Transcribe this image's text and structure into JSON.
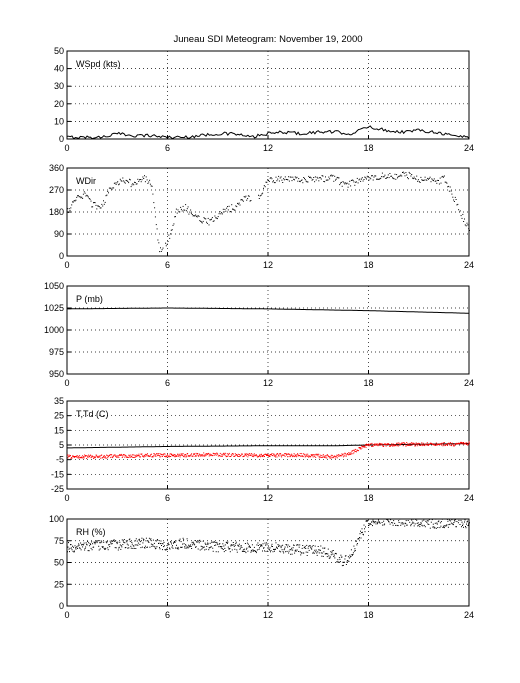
{
  "figure": {
    "title": "Juneau SDI Meteogram:  November 19, 2000"
  },
  "colors": {
    "primary": "#000000",
    "dewpoint": "#ff0000"
  },
  "chart_data": [
    {
      "type": "line",
      "label": "WSpd (kts)",
      "xlim": [
        0,
        24
      ],
      "xticks": [
        "0",
        "6",
        "12",
        "18",
        "24"
      ],
      "ylim": [
        0,
        50
      ],
      "yticks": [
        "0",
        "10",
        "20",
        "30",
        "40",
        "50"
      ],
      "grid": true,
      "series": [
        {
          "style": "line",
          "color": "#000000",
          "x": [
            0,
            1,
            2,
            3,
            4,
            5,
            6,
            7,
            8,
            9,
            10,
            11,
            12,
            13,
            14,
            15,
            16,
            17,
            18,
            19,
            20,
            21,
            22,
            23,
            24
          ],
          "y": [
            1,
            1,
            1,
            3,
            2,
            2,
            1,
            1,
            2,
            3,
            3,
            1,
            3,
            4,
            3,
            4,
            4,
            3,
            7,
            5,
            4,
            5,
            4,
            2,
            1
          ]
        }
      ]
    },
    {
      "type": "scatter",
      "label": "WDir",
      "xlim": [
        0,
        24
      ],
      "xticks": [
        "0",
        "6",
        "12",
        "18",
        "24"
      ],
      "ylim": [
        0,
        360
      ],
      "yticks": [
        "0",
        "90",
        "180",
        "270",
        "360"
      ],
      "grid": true,
      "series": [
        {
          "style": "dots",
          "color": "#000000",
          "x": [
            0,
            0.5,
            1,
            1.5,
            2,
            2.5,
            3,
            3.5,
            4,
            4.5,
            5,
            5.5,
            6,
            6.5,
            7,
            7.5,
            8,
            8.5,
            9,
            9.5,
            10,
            10.5,
            11.5,
            12,
            13,
            14,
            15,
            16,
            16.5,
            17,
            18,
            19,
            19.5,
            20,
            21,
            21.5,
            22,
            22.5,
            23,
            23.5,
            24
          ],
          "y": [
            180,
            240,
            250,
            210,
            190,
            270,
            300,
            310,
            290,
            320,
            300,
            20,
            60,
            180,
            200,
            170,
            150,
            140,
            170,
            190,
            200,
            230,
            250,
            310,
            315,
            310,
            315,
            320,
            290,
            300,
            320,
            330,
            320,
            340,
            310,
            320,
            300,
            320,
            250,
            170,
            110
          ]
        }
      ]
    },
    {
      "type": "line",
      "label": "P (mb)",
      "xlim": [
        0,
        24
      ],
      "xticks": [
        "0",
        "6",
        "12",
        "18",
        "24"
      ],
      "ylim": [
        950,
        1050
      ],
      "yticks": [
        "950",
        "975",
        "1000",
        "1025",
        "1050"
      ],
      "grid": true,
      "series": [
        {
          "style": "line",
          "color": "#000000",
          "x": [
            0,
            6,
            12,
            18,
            24
          ],
          "y": [
            1024,
            1025,
            1024,
            1022,
            1019
          ]
        }
      ]
    },
    {
      "type": "line",
      "label": "T,Td (C)",
      "xlim": [
        0,
        24
      ],
      "xticks": [
        "0",
        "6",
        "12",
        "18",
        "24"
      ],
      "ylim": [
        -25,
        35
      ],
      "yticks": [
        "-25",
        "-15",
        "-5",
        "5",
        "15",
        "25",
        "35"
      ],
      "grid": true,
      "series": [
        {
          "style": "line",
          "color": "#000000",
          "x": [
            0,
            6,
            12,
            16,
            18,
            24
          ],
          "y": [
            3,
            4,
            4.5,
            4.5,
            5,
            6
          ]
        },
        {
          "style": "dots",
          "color": "#ff0000",
          "x": [
            0,
            1,
            2,
            3,
            4,
            5,
            6,
            7,
            8,
            9,
            10,
            11,
            12,
            13,
            14,
            15,
            16,
            16.5,
            17,
            17.5,
            18,
            19,
            20,
            21,
            22,
            23,
            24
          ],
          "y": [
            -3,
            -3,
            -3,
            -2.5,
            -2.5,
            -2,
            -2,
            -2,
            -1.5,
            -1.5,
            -2,
            -2,
            -2,
            -2,
            -2,
            -2.5,
            -3,
            -2,
            0,
            3,
            5,
            5,
            5.5,
            5.5,
            5.5,
            5.5,
            6
          ]
        }
      ]
    },
    {
      "type": "scatter",
      "label": "RH (%)",
      "xlim": [
        0,
        24
      ],
      "xticks": [
        "0",
        "6",
        "12",
        "18",
        "24"
      ],
      "ylim": [
        0,
        100
      ],
      "yticks": [
        "0",
        "25",
        "50",
        "75",
        "100"
      ],
      "grid": true,
      "series": [
        {
          "style": "dots",
          "color": "#000000",
          "x": [
            0,
            1,
            2,
            3,
            4,
            5,
            6,
            7,
            8,
            9,
            10,
            11,
            12,
            13,
            14,
            15,
            16,
            16.5,
            17,
            17.5,
            18,
            19,
            20,
            21,
            22,
            23,
            24
          ],
          "y": [
            68,
            68,
            70,
            70,
            72,
            72,
            70,
            72,
            70,
            68,
            68,
            66,
            68,
            66,
            64,
            64,
            58,
            50,
            62,
            82,
            98,
            99,
            98,
            96,
            95,
            96,
            96
          ]
        }
      ]
    }
  ]
}
